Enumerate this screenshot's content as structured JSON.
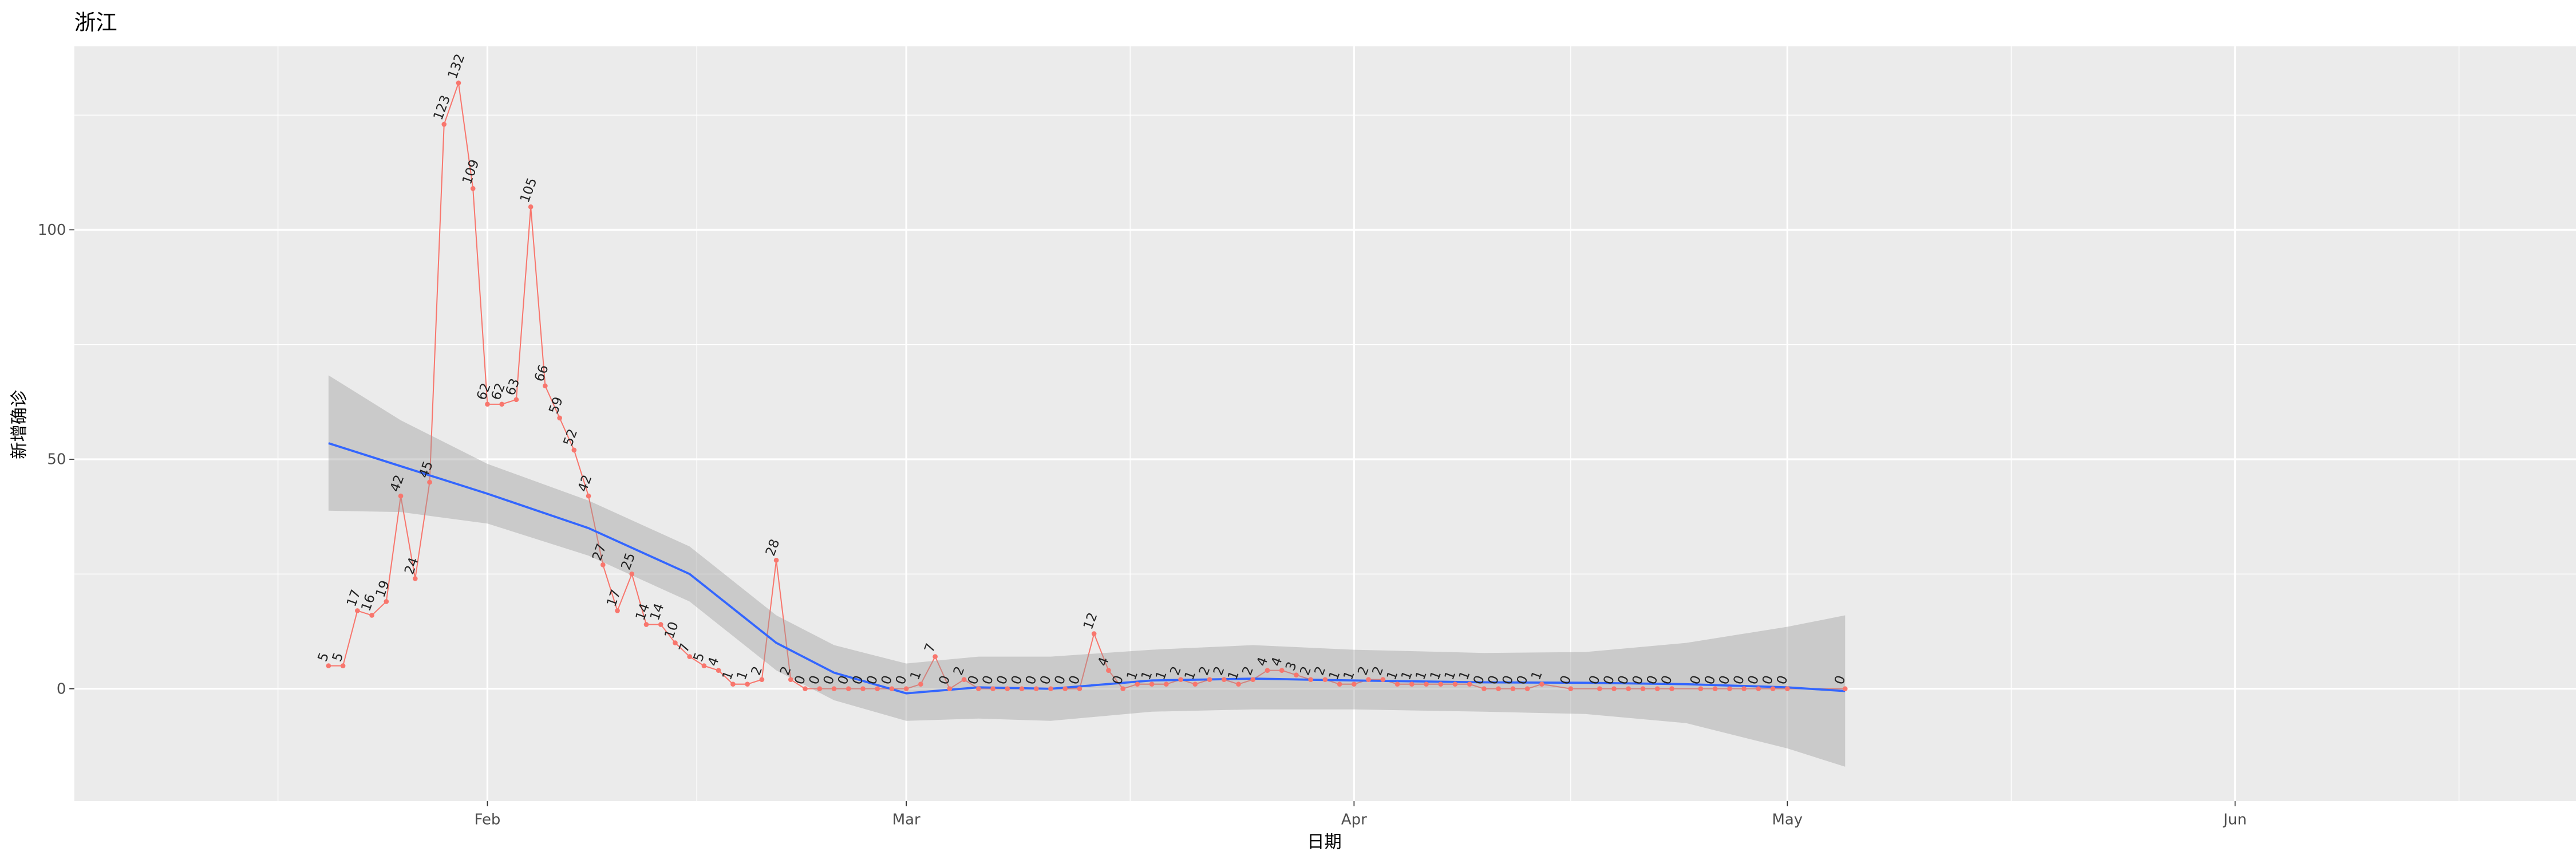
{
  "chart_data": {
    "type": "line",
    "title": "浙江",
    "xlabel": "日期",
    "ylabel": "新增确诊",
    "x": [
      21,
      22,
      23,
      24,
      25,
      26,
      27,
      28,
      29,
      30,
      31,
      32,
      33,
      34,
      35,
      36,
      37,
      38,
      39,
      40,
      41,
      42,
      43,
      44,
      45,
      46,
      47,
      48,
      49,
      50,
      51,
      52,
      53,
      54,
      55,
      56,
      57,
      58,
      59,
      60,
      61,
      62,
      63,
      64,
      65,
      66,
      67,
      68,
      69,
      70,
      71,
      72,
      73,
      74,
      75,
      76,
      77,
      78,
      79,
      80,
      81,
      82,
      83,
      84,
      85,
      86,
      87,
      88,
      89,
      90,
      91,
      92,
      93,
      94,
      95,
      96,
      97,
      98,
      99,
      100,
      101,
      102,
      103,
      104,
      105,
      107,
      109,
      110,
      111,
      112,
      113,
      114,
      116,
      117,
      118,
      119,
      120,
      121,
      122,
      126
    ],
    "values": [
      5,
      5,
      17,
      16,
      19,
      42,
      24,
      45,
      123,
      132,
      109,
      62,
      62,
      63,
      105,
      66,
      59,
      52,
      42,
      27,
      17,
      25,
      14,
      14,
      10,
      7,
      5,
      4,
      1,
      1,
      2,
      28,
      2,
      0,
      0,
      0,
      0,
      0,
      0,
      0,
      0,
      1,
      7,
      0,
      2,
      0,
      0,
      0,
      0,
      0,
      0,
      0,
      0,
      12,
      4,
      0,
      1,
      1,
      1,
      2,
      1,
      2,
      2,
      1,
      2,
      4,
      4,
      3,
      2,
      2,
      1,
      1,
      2,
      2,
      1,
      1,
      1,
      1,
      1,
      1,
      0,
      0,
      0,
      0,
      1,
      0,
      0,
      0,
      0,
      0,
      0,
      0,
      0,
      0,
      0,
      0,
      0,
      0,
      0,
      0
    ],
    "color": "#F8766D",
    "smooth_x": [
      21,
      26,
      32,
      39,
      46,
      52,
      56,
      61,
      66,
      71,
      78,
      85,
      92,
      101,
      108,
      115,
      122,
      126
    ],
    "smooth": [
      53.5,
      48.5,
      42.5,
      35,
      25,
      10,
      3.5,
      -1,
      0.3,
      0,
      1.8,
      2.2,
      1.8,
      1.4,
      1.3,
      1,
      0.3,
      -0.5
    ],
    "smooth_lower": [
      38.8,
      38.5,
      36,
      29,
      19,
      4,
      -2.5,
      -7,
      -6.5,
      -7,
      -5,
      -4.5,
      -4.5,
      -5,
      -5.5,
      -7.5,
      -13,
      -17
    ],
    "smooth_upper": [
      68.3,
      58.5,
      49,
      41,
      31,
      16,
      9.5,
      5.5,
      7,
      7,
      8.5,
      9.5,
      8.5,
      7.8,
      8,
      10,
      13.5,
      16
    ],
    "smooth_color": "#3366FF",
    "ribbon_color": "#999999",
    "xlim": [
      3.4,
      176.6
    ],
    "xticks": [
      {
        "value": 32,
        "label": "Feb"
      },
      {
        "value": 61,
        "label": "Mar"
      },
      {
        "value": 92,
        "label": "Apr"
      },
      {
        "value": 122,
        "label": "May"
      },
      {
        "value": 153,
        "label": "Jun"
      }
    ],
    "ylim": [
      -24.5,
      140
    ],
    "yticks": [
      0,
      50,
      100
    ],
    "grid": true
  }
}
